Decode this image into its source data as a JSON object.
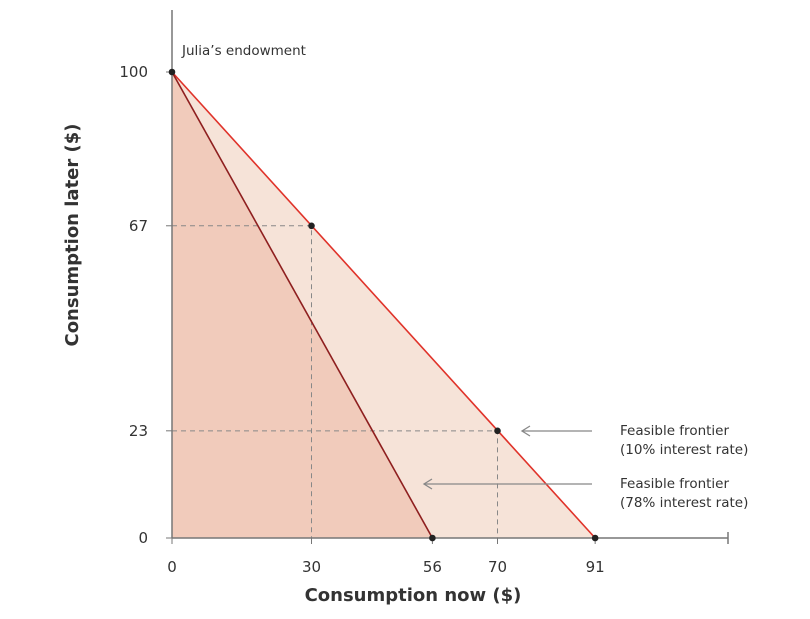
{
  "chart_data": {
    "type": "area",
    "xlabel": "Consumption now ($)",
    "ylabel": "Consumption later ($)",
    "xlim": [
      0,
      120
    ],
    "ylim": [
      0,
      113
    ],
    "x_ticks": [
      0,
      30,
      56,
      70,
      91
    ],
    "y_ticks": [
      0,
      23,
      67,
      100
    ],
    "grid": false,
    "series": [
      {
        "label": "Feasible frontier\n(10% interest rate)",
        "label_lines": [
          "Feasible frontier",
          "(10% interest rate)"
        ],
        "points": [
          [
            0,
            100
          ],
          [
            91,
            0
          ]
        ],
        "color": "#e0332a",
        "fill": "#f6e3d8"
      },
      {
        "label_lines": [
          "Feasible frontier",
          "(78% interest rate)"
        ],
        "points": [
          [
            0,
            100
          ],
          [
            56,
            0
          ]
        ],
        "color": "#8e1f1f",
        "fill": "#f1cbbb"
      }
    ],
    "points": [
      [
        0,
        100
      ],
      [
        30,
        67
      ],
      [
        70,
        23
      ],
      [
        56,
        0
      ],
      [
        91,
        0
      ]
    ],
    "guides": [
      [
        30,
        67
      ],
      [
        70,
        23
      ]
    ],
    "annotations": [
      {
        "text": "Julia’s endowment",
        "x": 0,
        "y": 100
      }
    ]
  }
}
